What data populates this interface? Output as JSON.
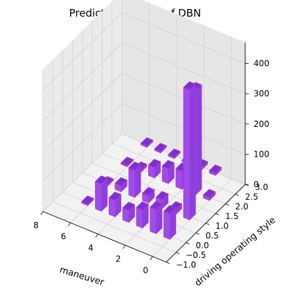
{
  "chart_data": {
    "type": "bar3d",
    "title": "Prediction Results of DBN",
    "xlabel": "maneuver",
    "ylabel": "driving operating style",
    "zlabel": "",
    "xlim": [
      -1,
      8
    ],
    "ylim": [
      -1.0,
      3.0
    ],
    "zlim": [
      0,
      470
    ],
    "x_ticks": [
      "0",
      "2",
      "4",
      "6",
      "8"
    ],
    "y_ticks": [
      "−1.0",
      "−0.5",
      "0.0",
      "0.5",
      "1.0",
      "1.5",
      "2.0",
      "2.5",
      "3.0"
    ],
    "z_ticks": [
      "0",
      "100",
      "200",
      "300",
      "400"
    ],
    "bar_color": "#9b4dee",
    "edge_color": "#c0399c",
    "bars": [
      {
        "x": 0,
        "y": 0,
        "z": 85
      },
      {
        "x": 1,
        "y": 0,
        "z": 80
      },
      {
        "x": 2,
        "y": 0,
        "z": 60
      },
      {
        "x": 3,
        "y": 0,
        "z": 40
      },
      {
        "x": 4,
        "y": 0,
        "z": 55
      },
      {
        "x": 5,
        "y": 0,
        "z": 90
      },
      {
        "x": 6,
        "y": 0,
        "z": 5
      },
      {
        "x": 0,
        "y": 1,
        "z": 430
      },
      {
        "x": 1,
        "y": 1,
        "z": 15
      },
      {
        "x": 2,
        "y": 1,
        "z": 30
      },
      {
        "x": 3,
        "y": 1,
        "z": 25
      },
      {
        "x": 4,
        "y": 1,
        "z": 90
      },
      {
        "x": 5,
        "y": 1,
        "z": 20
      },
      {
        "x": 6,
        "y": 1,
        "z": 5
      },
      {
        "x": 0,
        "y": 2,
        "z": 10
      },
      {
        "x": 1,
        "y": 2,
        "z": 345
      },
      {
        "x": 2,
        "y": 2,
        "z": 60
      },
      {
        "x": 3,
        "y": 2,
        "z": 50
      },
      {
        "x": 4,
        "y": 2,
        "z": 35
      },
      {
        "x": 5,
        "y": 2,
        "z": 8
      },
      {
        "x": 6,
        "y": 2,
        "z": 5
      },
      {
        "x": 1,
        "y": 3,
        "z": 8
      },
      {
        "x": 2,
        "y": 3,
        "z": 8
      },
      {
        "x": 3,
        "y": 3,
        "z": 5
      },
      {
        "x": 4,
        "y": 3,
        "z": 5
      },
      {
        "x": 5,
        "y": 3,
        "z": 5
      },
      {
        "x": 6,
        "y": 3,
        "z": 5
      }
    ]
  }
}
